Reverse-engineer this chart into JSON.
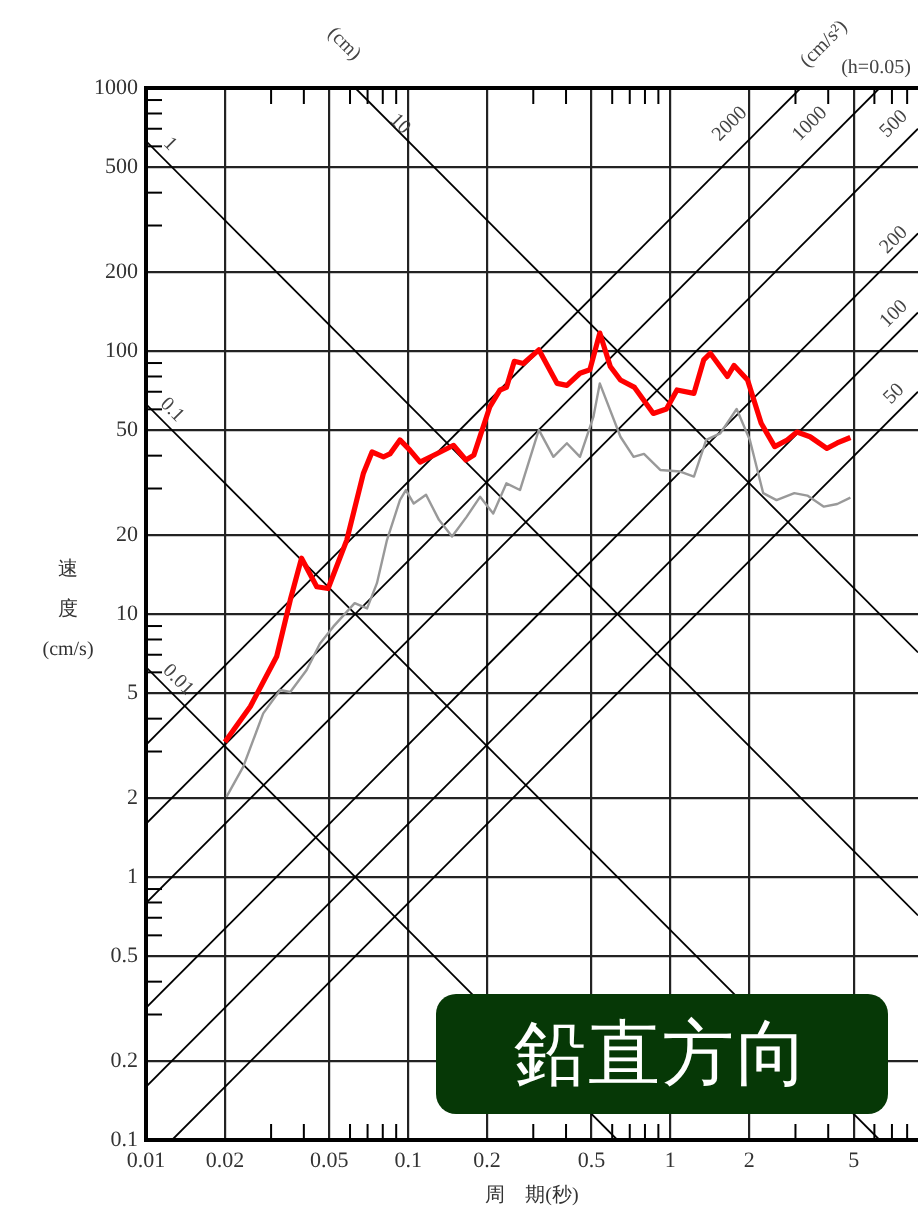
{
  "chart_data": {
    "type": "line",
    "xlabel": "周　期(秒)",
    "ylabel": "速度(cm/s)",
    "log": "xy",
    "grid": true,
    "legend": false,
    "marker": "none",
    "line_style": "solid",
    "xlim": [
      0.01,
      8.8
    ],
    "ylim": [
      0.1,
      1000
    ],
    "xticks": [
      0.01,
      0.02,
      {
        "value": 0.03,
        "label": null
      },
      {
        "value": 0.04,
        "label": null
      },
      0.05,
      {
        "value": 0.06,
        "label": null
      },
      {
        "value": 0.07,
        "label": null
      },
      {
        "value": 0.08,
        "label": null
      },
      {
        "value": 0.09,
        "label": null
      },
      0.1,
      0.2,
      {
        "value": 0.3,
        "label": null
      },
      {
        "value": 0.4,
        "label": null
      },
      0.5,
      {
        "value": 0.6,
        "label": null
      },
      {
        "value": 0.7,
        "label": null
      },
      {
        "value": 0.8,
        "label": null
      },
      {
        "value": 0.9,
        "label": null
      },
      1,
      2,
      {
        "value": 3,
        "label": null
      },
      {
        "value": 4,
        "label": null
      },
      5,
      {
        "value": 6,
        "label": null
      },
      {
        "value": 7,
        "label": null
      },
      {
        "value": 8,
        "label": null
      }
    ],
    "yticks": [
      0.1,
      0.2,
      {
        "value": 0.3,
        "label": null
      },
      {
        "value": 0.4,
        "label": null
      },
      0.5,
      {
        "value": 0.6,
        "label": null
      },
      {
        "value": 0.7,
        "label": null
      },
      {
        "value": 0.8,
        "label": null
      },
      {
        "value": 0.9,
        "label": null
      },
      1,
      2,
      {
        "value": 3,
        "label": null
      },
      {
        "value": 4,
        "label": null
      },
      5,
      {
        "value": 6,
        "label": null
      },
      {
        "value": 7,
        "label": null
      },
      {
        "value": 8,
        "label": null
      },
      {
        "value": 9,
        "label": null
      },
      10,
      20,
      {
        "value": 30,
        "label": null
      },
      {
        "value": 40,
        "label": null
      },
      50,
      {
        "value": 60,
        "label": null
      },
      {
        "value": 70,
        "label": null
      },
      {
        "value": 80,
        "label": null
      },
      {
        "value": 90,
        "label": null
      },
      100,
      200,
      {
        "value": 300,
        "label": null
      },
      {
        "value": 400,
        "label": null
      },
      500,
      {
        "value": 600,
        "label": null
      },
      {
        "value": 700,
        "label": null
      },
      {
        "value": 800,
        "label": null
      },
      {
        "value": 900,
        "label": null
      },
      1000
    ],
    "series": [
      {
        "color": "#ff0000",
        "x": [
          0.02,
          0.025,
          0.0315,
          0.0355,
          0.0392,
          0.0448,
          0.0495,
          0.0583,
          0.0675,
          0.0728,
          0.0805,
          0.0852,
          0.093,
          0.1015,
          0.111,
          0.128,
          0.149,
          0.166,
          0.178,
          0.205,
          0.224,
          0.237,
          0.254,
          0.275,
          0.315,
          0.37,
          0.403,
          0.452,
          0.493,
          0.538,
          0.59,
          0.645,
          0.73,
          0.861,
          0.966,
          1.06,
          1.23,
          1.34,
          1.42,
          1.65,
          1.75,
          1.97,
          2.22,
          2.5,
          2.79,
          3.04,
          3.41,
          3.95,
          4.33,
          4.86
        ],
        "values": [
          3.26,
          4.45,
          6.89,
          11.3,
          16.3,
          12.7,
          12.5,
          19.1,
          34.3,
          41.3,
          39.6,
          40.6,
          45.9,
          42,
          37.8,
          40.6,
          43.8,
          38.5,
          40.2,
          61.5,
          71.1,
          72.7,
          91.4,
          89.6,
          101,
          75.3,
          74,
          82.3,
          84.8,
          117,
          87.3,
          77.6,
          72.7,
          57.9,
          60.2,
          71.1,
          69,
          92.5,
          98,
          80,
          88.1,
          77.6,
          53.1,
          43.3,
          45.9,
          49.2,
          47.2,
          42.6,
          44.7,
          46.9
        ]
      },
      {
        "color": "#999999",
        "x": [
          0.0203,
          0.0235,
          0.028,
          0.0325,
          0.0355,
          0.041,
          0.0461,
          0.0518,
          0.0625,
          0.0697,
          0.076,
          0.083,
          0.093,
          0.098,
          0.105,
          0.117,
          0.131,
          0.147,
          0.167,
          0.188,
          0.211,
          0.237,
          0.267,
          0.315,
          0.358,
          0.403,
          0.452,
          0.509,
          0.538,
          0.645,
          0.724,
          0.793,
          0.915,
          1.09,
          1.23,
          1.37,
          1.55,
          1.79,
          2.01,
          2.26,
          2.54,
          2.97,
          3.33,
          3.85,
          4.33,
          4.86
        ],
        "values": [
          2.02,
          2.63,
          4.19,
          5.14,
          5.05,
          6.12,
          7.72,
          8.95,
          11,
          10.5,
          13.1,
          19.1,
          27.1,
          29.6,
          26.3,
          28.4,
          22.8,
          19.7,
          23.4,
          27.9,
          24.1,
          31.4,
          29.6,
          50.1,
          39.6,
          44.6,
          39.6,
          56.3,
          75.3,
          47.2,
          39.6,
          40.6,
          35.3,
          34.8,
          33.3,
          45.9,
          48.6,
          60.2,
          45.9,
          28.8,
          27.1,
          28.8,
          28.2,
          25.6,
          26.2,
          27.7
        ]
      },
      {
        "type": "line",
        "color": "#000000",
        "x": [
          0.01,
          0.6283
        ],
        "values": [
          6.283,
          0.1
        ]
      },
      {
        "type": "line",
        "color": "#000000",
        "x": [
          0.01,
          6.283
        ],
        "values": [
          62.83,
          0.1
        ]
      },
      {
        "type": "line",
        "color": "#000000",
        "x": [
          0.01,
          8.8
        ],
        "values": [
          628.3,
          0.714
        ]
      },
      {
        "type": "line",
        "color": "#000000",
        "x": [
          0.06283,
          8.8
        ],
        "values": [
          1000,
          7.14
        ]
      },
      {
        "type": "line",
        "color": "#000000",
        "x": [
          0.01,
          3.1416
        ],
        "values": [
          3.183,
          1000
        ]
      },
      {
        "type": "line",
        "color": "#000000",
        "x": [
          0.01,
          6.283
        ],
        "values": [
          1.592,
          1000
        ]
      },
      {
        "type": "line",
        "color": "#000000",
        "x": [
          0.01,
          8.8
        ],
        "values": [
          0.7958,
          700.3
        ]
      },
      {
        "type": "line",
        "color": "#000000",
        "x": [
          0.01,
          8.8
        ],
        "values": [
          0.3183,
          280.1
        ]
      },
      {
        "type": "line",
        "color": "#000000",
        "x": [
          0.01,
          8.8
        ],
        "values": [
          0.1592,
          140.1
        ]
      },
      {
        "type": "line",
        "color": "#000000",
        "x": [
          0.01257,
          8.8
        ],
        "values": [
          0.1,
          70.03
        ]
      }
    ],
    "annotations": [
      "(cm)",
      "(cm/s²)",
      "(h=0.05)",
      "鉛直方向",
      "1",
      "10",
      "0.1",
      "0.01",
      "2000",
      "1000",
      "500",
      "200",
      "100",
      "50"
    ]
  }
}
